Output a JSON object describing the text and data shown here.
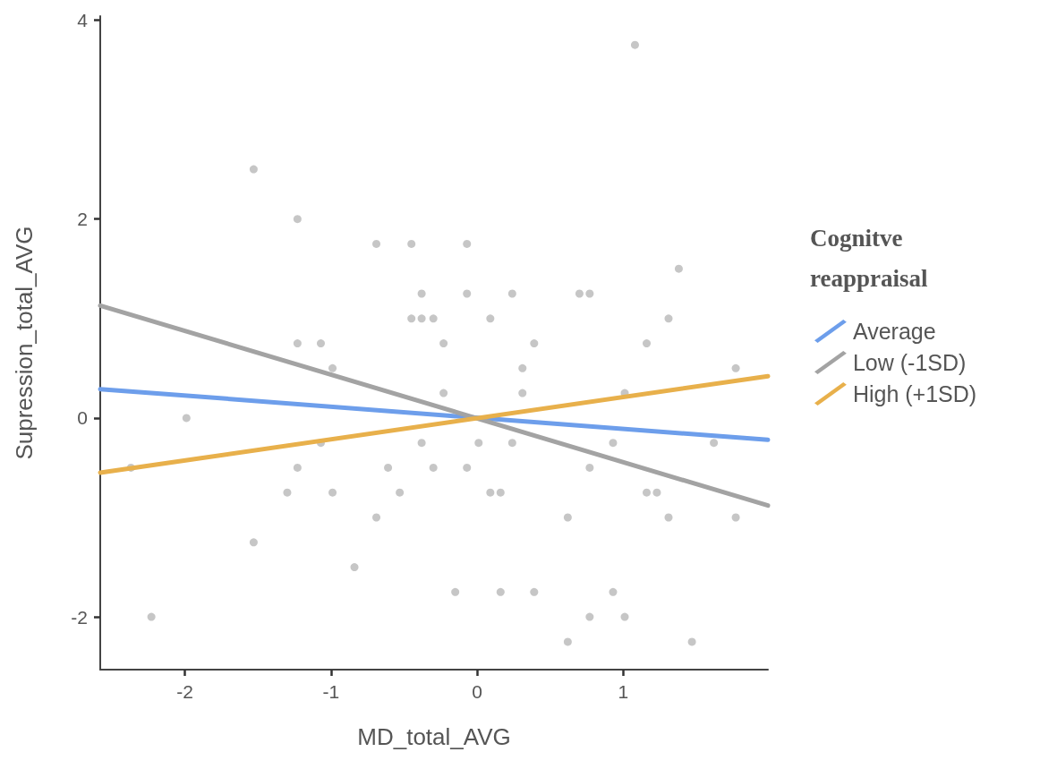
{
  "chart_data": {
    "type": "scatter",
    "xlabel": "MD_total_AVG",
    "ylabel": "Supression_total_AVG",
    "legend_title": "Cognitve reappraisal",
    "legend": "right",
    "grid": false,
    "xlim": [
      -2.58,
      1.99
    ],
    "ylim": [
      -2.53,
      4.04
    ],
    "xticks": [
      -2,
      -1,
      0,
      1
    ],
    "yticks": [
      -2,
      0,
      2,
      4
    ],
    "series": [
      {
        "color": "#b3b3b3",
        "marker": "circle",
        "x": [
          -1.53,
          -1.23,
          -0.69,
          -0.45,
          -0.38,
          -0.45,
          -0.38,
          -0.3,
          -1.23,
          -1.07,
          -0.23,
          -0.99,
          1.08,
          -0.07,
          1.38,
          -0.07,
          0.24,
          0.7,
          0.77,
          0.09,
          1.31,
          0.39,
          1.16,
          0.31,
          1.77,
          -0.23,
          -1.99,
          -1.07,
          -0.38,
          -2.37,
          -1.23,
          -0.61,
          -0.3,
          -1.3,
          -0.99,
          -0.53,
          -0.69,
          -1.53,
          -0.84,
          -2.23,
          0.31,
          1.01,
          0.01,
          0.24,
          0.93,
          1.62,
          -0.07,
          0.77,
          0.09,
          0.16,
          1.16,
          1.23,
          0.62,
          1.31,
          1.77,
          -0.15,
          0.16,
          0.39,
          0.93,
          0.77,
          1.01,
          0.62,
          1.47
        ],
        "values": [
          2.5,
          2.0,
          1.75,
          1.75,
          1.25,
          1.0,
          1.0,
          1.0,
          0.75,
          0.75,
          0.75,
          0.5,
          3.75,
          1.75,
          1.5,
          1.25,
          1.25,
          1.25,
          1.25,
          1.0,
          1.0,
          0.75,
          0.75,
          0.5,
          0.5,
          0.25,
          0,
          -0.25,
          -0.25,
          -0.5,
          -0.5,
          -0.5,
          -0.5,
          -0.75,
          -0.75,
          -0.75,
          -1.0,
          -1.25,
          -1.5,
          -2.0,
          0.25,
          0.25,
          -0.25,
          -0.25,
          -0.25,
          -0.25,
          -0.5,
          -0.5,
          -0.75,
          -0.75,
          -0.75,
          -0.75,
          -1.0,
          -1.0,
          -1.0,
          -1.75,
          -1.75,
          -1.75,
          -1.75,
          -2.0,
          -2.0,
          -2.25,
          -2.25
        ]
      },
      {
        "type": "line",
        "name": "Average",
        "color": "#6d9eeb",
        "marker": "none",
        "x": [
          -2.58,
          1.99
        ],
        "values": [
          0.29,
          -0.22
        ]
      },
      {
        "type": "line",
        "name": "Low (-1SD)",
        "color": "#a3a3a3",
        "marker": "none",
        "x": [
          -2.58,
          1.99
        ],
        "values": [
          1.13,
          -0.88
        ]
      },
      {
        "type": "line",
        "name": "High (+1SD)",
        "color": "#e8b04b",
        "marker": "none",
        "x": [
          -2.58,
          1.99
        ],
        "values": [
          -0.55,
          0.42
        ]
      }
    ]
  }
}
